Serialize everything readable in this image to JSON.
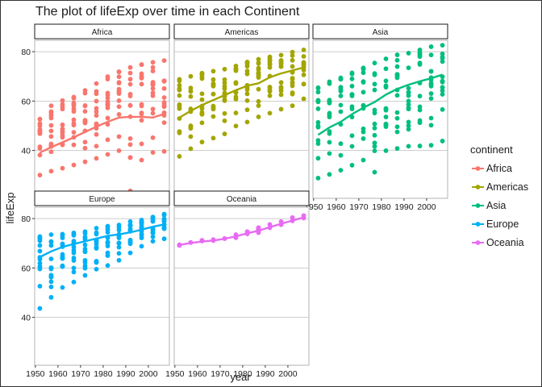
{
  "chart_data": {
    "type": "scatter",
    "title": "The plot of lifeExp over time in each Continent",
    "xlabel": "year",
    "ylabel": "lifeExp",
    "xlim": [
      1949.7,
      2009.3
    ],
    "ylim": [
      20.6,
      84.6
    ],
    "x_ticks": [
      1950,
      1960,
      1970,
      1980,
      1990,
      2000
    ],
    "y_ticks": [
      40,
      60,
      80
    ],
    "grid": true,
    "legend": {
      "title": "continent",
      "placement": "right"
    },
    "years": [
      1952,
      1957,
      1962,
      1967,
      1972,
      1977,
      1982,
      1987,
      1992,
      1997,
      2002,
      2007
    ],
    "panels": [
      {
        "name": "Africa",
        "color": "#F8766D",
        "range_min": [
          30.0,
          31.6,
          32.8,
          34.1,
          35.4,
          36.8,
          38.4,
          39.9,
          23.6,
          36.1,
          39.2,
          39.6
        ],
        "range_max": [
          52.7,
          58.1,
          60.2,
          61.6,
          64.3,
          67.1,
          69.9,
          71.9,
          73.6,
          74.8,
          75.7,
          76.4
        ],
        "smooth": [
          39.1,
          41.3,
          43.3,
          45.3,
          47.5,
          49.6,
          51.6,
          53.3,
          53.6,
          53.6,
          53.3,
          54.8
        ]
      },
      {
        "name": "Americas",
        "color": "#A3A500",
        "range_min": [
          37.6,
          40.7,
          43.4,
          45.0,
          46.7,
          49.9,
          51.5,
          53.6,
          55.1,
          56.7,
          58.1,
          60.9
        ],
        "range_max": [
          68.8,
          70.0,
          71.3,
          72.1,
          72.9,
          74.2,
          75.8,
          76.9,
          77.9,
          78.6,
          79.8,
          80.7
        ],
        "smooth": [
          53.3,
          56.0,
          58.4,
          60.4,
          62.4,
          64.4,
          66.2,
          67.2,
          69.6,
          71.2,
          72.4,
          73.6
        ]
      },
      {
        "name": "Asia",
        "color": "#00BF7D",
        "range_min": [
          28.8,
          30.3,
          32.0,
          34.0,
          36.1,
          31.2,
          39.9,
          40.8,
          41.7,
          41.8,
          42.1,
          43.8
        ],
        "range_max": [
          65.4,
          67.8,
          69.4,
          71.4,
          73.4,
          75.4,
          77.1,
          78.7,
          79.4,
          80.7,
          82.0,
          82.6
        ],
        "smooth": [
          46.3,
          49.3,
          51.6,
          54.7,
          57.3,
          59.6,
          62.6,
          64.9,
          66.6,
          68.0,
          69.2,
          70.7
        ]
      },
      {
        "name": "Europe",
        "color": "#00B0F6",
        "range_min": [
          43.6,
          48.1,
          52.1,
          54.3,
          57.0,
          59.5,
          61.0,
          63.1,
          66.1,
          68.8,
          70.8,
          71.8
        ],
        "range_max": [
          72.7,
          73.5,
          73.7,
          74.2,
          74.7,
          76.1,
          76.9,
          77.4,
          78.8,
          79.4,
          80.6,
          81.8
        ],
        "smooth": [
          64.4,
          66.7,
          68.5,
          69.7,
          70.8,
          71.9,
          73.0,
          73.6,
          74.4,
          75.5,
          76.7,
          77.6
        ]
      },
      {
        "name": "Oceania",
        "color": "#E76BF3",
        "range_min": [
          69.1,
          70.3,
          70.9,
          71.1,
          71.9,
          72.2,
          73.8,
          74.3,
          76.3,
          77.5,
          79.1,
          80.2
        ],
        "range_max": [
          69.4,
          70.3,
          71.2,
          71.5,
          71.9,
          73.5,
          74.7,
          76.3,
          77.6,
          78.8,
          80.4,
          81.2
        ],
        "smooth": [
          69.3,
          70.1,
          70.7,
          71.1,
          71.8,
          72.8,
          74.0,
          75.1,
          76.5,
          77.9,
          79.2,
          80.5
        ]
      }
    ]
  }
}
